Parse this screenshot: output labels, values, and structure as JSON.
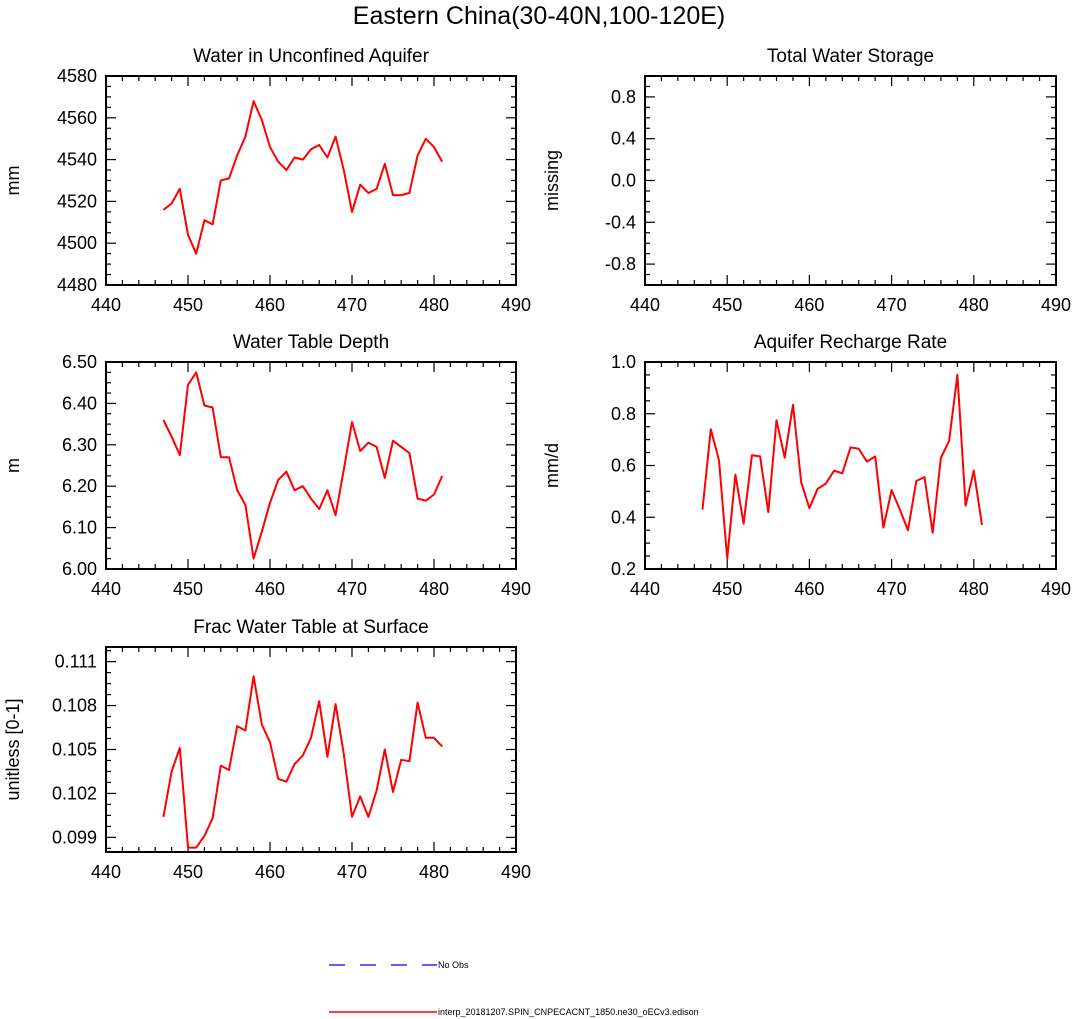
{
  "page": {
    "title": "Eastern China(30-40N,100-120E)"
  },
  "legend": {
    "obs_label": "No Obs",
    "obs_color": "#0000ff",
    "model_label": "interp_20181207.SPIN_CNPECACNT_1850.ne30_oECv3.edison",
    "model_color": "#ff0000"
  },
  "chart_data": [
    {
      "type": "line",
      "title": "Water in Unconfined Aquifer",
      "xlabel": "",
      "ylabel": "mm",
      "xlim": [
        440,
        490
      ],
      "ylim": [
        4480,
        4580
      ],
      "xticks": [
        440,
        450,
        460,
        470,
        480,
        490
      ],
      "yticks": [
        4480,
        4500,
        4520,
        4540,
        4560,
        4580
      ],
      "ytick_labels": [
        "4480",
        "4500",
        "4520",
        "4540",
        "4560",
        "4580"
      ],
      "x": [
        447,
        448,
        449,
        450,
        451,
        452,
        453,
        454,
        455,
        456,
        457,
        458,
        459,
        460,
        461,
        462,
        463,
        464,
        465,
        466,
        467,
        468,
        469,
        470,
        471,
        472,
        473,
        474,
        475,
        476,
        477,
        478,
        479,
        480,
        481
      ],
      "series": [
        {
          "name": "interp_20181207.SPIN_CNPECACNT_1850.ne30_oECv3.edison",
          "values": [
            4516,
            4519,
            4526,
            4504,
            4495,
            4511,
            4509,
            4530,
            4531,
            4542,
            4551,
            4568,
            4559,
            4546,
            4539,
            4535,
            4541,
            4540,
            4545,
            4547,
            4541,
            4551,
            4535,
            4515,
            4528,
            4524,
            4526,
            4538,
            4523,
            4523,
            4524,
            4542,
            4550,
            4546,
            4539
          ]
        }
      ]
    },
    {
      "type": "line",
      "title": "Total Water Storage",
      "xlabel": "",
      "ylabel": "missing",
      "xlim": [
        440,
        490
      ],
      "ylim": [
        -1,
        1
      ],
      "xticks": [
        440,
        450,
        460,
        470,
        480,
        490
      ],
      "yticks": [
        -0.8,
        -0.4,
        0.0,
        0.4,
        0.8
      ],
      "ytick_labels": [
        "-0.8",
        "-0.4",
        "0.0",
        "0.4",
        "0.8"
      ],
      "x": [],
      "series": []
    },
    {
      "type": "line",
      "title": "Water Table Depth",
      "xlabel": "",
      "ylabel": "m",
      "xlim": [
        440,
        490
      ],
      "ylim": [
        6.0,
        6.5
      ],
      "xticks": [
        440,
        450,
        460,
        470,
        480,
        490
      ],
      "yticks": [
        6.0,
        6.1,
        6.2,
        6.3,
        6.4,
        6.5
      ],
      "ytick_labels": [
        "6.00",
        "6.10",
        "6.20",
        "6.30",
        "6.40",
        "6.50"
      ],
      "x": [
        447,
        448,
        449,
        450,
        451,
        452,
        453,
        454,
        455,
        456,
        457,
        458,
        459,
        460,
        461,
        462,
        463,
        464,
        465,
        466,
        467,
        468,
        469,
        470,
        471,
        472,
        473,
        474,
        475,
        476,
        477,
        478,
        479,
        480,
        481
      ],
      "series": [
        {
          "name": "interp_20181207.SPIN_CNPECACNT_1850.ne30_oECv3.edison",
          "values": [
            6.36,
            6.32,
            6.275,
            6.445,
            6.475,
            6.395,
            6.39,
            6.27,
            6.27,
            6.19,
            6.155,
            6.025,
            6.09,
            6.16,
            6.215,
            6.235,
            6.19,
            6.2,
            6.17,
            6.145,
            6.19,
            6.13,
            6.24,
            6.355,
            6.285,
            6.305,
            6.295,
            6.22,
            6.31,
            6.295,
            6.28,
            6.17,
            6.165,
            6.18,
            6.225
          ]
        }
      ]
    },
    {
      "type": "line",
      "title": "Aquifer Recharge Rate",
      "xlabel": "",
      "ylabel": "mm/d",
      "xlim": [
        440,
        490
      ],
      "ylim": [
        0.2,
        1.0
      ],
      "xticks": [
        440,
        450,
        460,
        470,
        480,
        490
      ],
      "yticks": [
        0.2,
        0.4,
        0.6,
        0.8,
        1.0
      ],
      "ytick_labels": [
        "0.2",
        "0.4",
        "0.6",
        "0.8",
        "1.0"
      ],
      "x": [
        447,
        448,
        449,
        450,
        451,
        452,
        453,
        454,
        455,
        456,
        457,
        458,
        459,
        460,
        461,
        462,
        463,
        464,
        465,
        466,
        467,
        468,
        469,
        470,
        471,
        472,
        473,
        474,
        475,
        476,
        477,
        478,
        479,
        480,
        481
      ],
      "series": [
        {
          "name": "interp_20181207.SPIN_CNPECACNT_1850.ne30_oECv3.edison",
          "values": [
            0.43,
            0.74,
            0.62,
            0.24,
            0.565,
            0.375,
            0.64,
            0.635,
            0.42,
            0.775,
            0.63,
            0.835,
            0.535,
            0.435,
            0.51,
            0.53,
            0.58,
            0.57,
            0.67,
            0.665,
            0.615,
            0.635,
            0.36,
            0.505,
            0.43,
            0.35,
            0.54,
            0.555,
            0.34,
            0.63,
            0.695,
            0.95,
            0.445,
            0.58,
            0.37
          ]
        }
      ]
    },
    {
      "type": "line",
      "title": "Frac Water Table at Surface",
      "xlabel": "",
      "ylabel": "unitless [0-1]",
      "xlim": [
        440,
        490
      ],
      "ylim": [
        0.098,
        0.112
      ],
      "xticks": [
        440,
        450,
        460,
        470,
        480,
        490
      ],
      "yticks": [
        0.099,
        0.102,
        0.105,
        0.108,
        0.111
      ],
      "ytick_labels": [
        "0.099",
        "0.102",
        "0.105",
        "0.108",
        "0.111"
      ],
      "x": [
        447,
        448,
        449,
        450,
        451,
        452,
        453,
        454,
        455,
        456,
        457,
        458,
        459,
        460,
        461,
        462,
        463,
        464,
        465,
        466,
        467,
        468,
        469,
        470,
        471,
        472,
        473,
        474,
        475,
        476,
        477,
        478,
        479,
        480,
        481
      ],
      "series": [
        {
          "name": "interp_20181207.SPIN_CNPECACNT_1850.ne30_oECv3.edison",
          "values": [
            0.1004,
            0.1035,
            0.1051,
            0.0983,
            0.0983,
            0.0991,
            0.1003,
            0.1039,
            0.1036,
            0.1066,
            0.1063,
            0.11,
            0.1067,
            0.1055,
            0.103,
            0.1028,
            0.104,
            0.1046,
            0.1058,
            0.1083,
            0.1045,
            0.1081,
            0.1047,
            0.1004,
            0.1018,
            0.1004,
            0.1022,
            0.105,
            0.1021,
            0.1043,
            0.1042,
            0.1082,
            0.1058,
            0.1058,
            0.1052
          ]
        }
      ]
    }
  ]
}
